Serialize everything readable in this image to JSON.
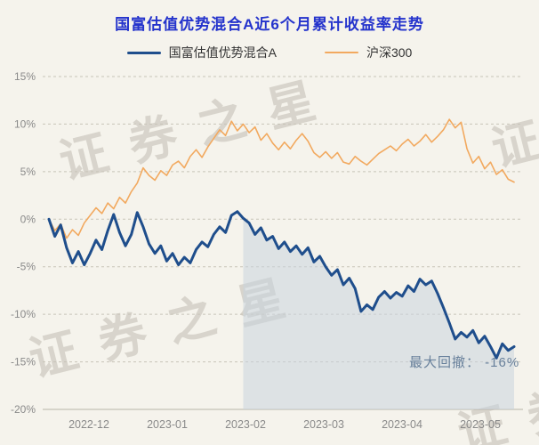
{
  "watermark": {
    "text": "证券之星"
  },
  "chart_data": {
    "type": "line",
    "title": "国富估值优势混合A近6个月累计收益率走势",
    "legend": [
      "国富估值优势混合A",
      "沪深300"
    ],
    "x_ticks": [
      "2022-12",
      "2023-01",
      "2023-02",
      "2023-03",
      "2023-04",
      "2023-05"
    ],
    "x_tick_x": [
      100,
      188,
      276,
      364,
      452,
      540
    ],
    "y_ticks": [
      "15%",
      "10%",
      "5%",
      "0%",
      "-5%",
      "-10%",
      "-15%",
      "-20%"
    ],
    "y_tick_values": [
      15,
      10,
      5,
      0,
      -5,
      -10,
      -15,
      -20
    ],
    "ylim": [
      -20,
      15
    ],
    "grid": "dashed-horizontal",
    "legend_position": "top-center",
    "series": [
      {
        "name": "国富估值优势混合A",
        "color": "#1f4e8c",
        "width": 3,
        "values": [
          0.0,
          -1.8,
          -0.6,
          -3.0,
          -4.6,
          -3.4,
          -4.8,
          -3.6,
          -2.2,
          -3.2,
          -1.2,
          0.5,
          -1.4,
          -2.8,
          -1.6,
          0.7,
          -0.8,
          -2.6,
          -3.6,
          -2.8,
          -4.4,
          -3.6,
          -4.8,
          -4.0,
          -4.6,
          -3.2,
          -2.4,
          -2.9,
          -1.6,
          -0.8,
          -1.4,
          0.4,
          0.8,
          0.1,
          -0.4,
          -1.6,
          -0.9,
          -2.2,
          -1.8,
          -3.1,
          -2.4,
          -3.4,
          -2.8,
          -3.7,
          -3.0,
          -4.5,
          -3.9,
          -5.0,
          -5.9,
          -5.3,
          -6.9,
          -6.2,
          -7.3,
          -9.7,
          -9.0,
          -9.5,
          -8.2,
          -7.6,
          -8.3,
          -7.7,
          -8.1,
          -7.0,
          -7.6,
          -6.3,
          -6.9,
          -6.5,
          -7.8,
          -9.3,
          -10.9,
          -12.6,
          -11.9,
          -12.4,
          -11.7,
          -13.0,
          -12.3,
          -13.4,
          -14.6,
          -13.1,
          -13.8,
          -13.4
        ]
      },
      {
        "name": "沪深300",
        "color": "#f2a95f",
        "width": 1.6,
        "values": [
          0.0,
          -1.2,
          -0.5,
          -2.0,
          -1.1,
          -1.7,
          -0.4,
          0.4,
          1.2,
          0.6,
          1.7,
          1.1,
          2.3,
          1.7,
          2.9,
          3.8,
          5.4,
          4.6,
          4.1,
          5.1,
          4.6,
          5.7,
          6.1,
          5.4,
          6.6,
          7.3,
          6.5,
          7.6,
          8.5,
          9.4,
          8.8,
          10.3,
          9.3,
          10.0,
          9.1,
          9.7,
          8.3,
          9.0,
          8.0,
          7.3,
          8.1,
          7.4,
          8.3,
          9.0,
          8.2,
          7.0,
          6.5,
          7.1,
          6.4,
          7.0,
          6.0,
          5.8,
          6.6,
          6.1,
          5.7,
          6.3,
          6.9,
          7.3,
          7.7,
          7.2,
          7.9,
          8.4,
          7.7,
          8.2,
          8.9,
          8.1,
          8.7,
          9.4,
          10.5,
          9.6,
          10.2,
          7.4,
          5.9,
          6.6,
          5.3,
          6.0,
          4.7,
          5.2,
          4.2,
          3.9
        ]
      }
    ],
    "annotation": {
      "text": "最大回撤：  -16%",
      "color": "#68809b"
    },
    "drawdown_shade": {
      "start_index": 33,
      "fill": "#c9d4df",
      "opacity": 0.55
    },
    "colors": {
      "title": "#2433cc",
      "page_bg": "#f5f3ec",
      "grid": "#c8c4b8",
      "axis_line": "#b8b4a8",
      "tick_text": "#8a8a8a"
    }
  }
}
